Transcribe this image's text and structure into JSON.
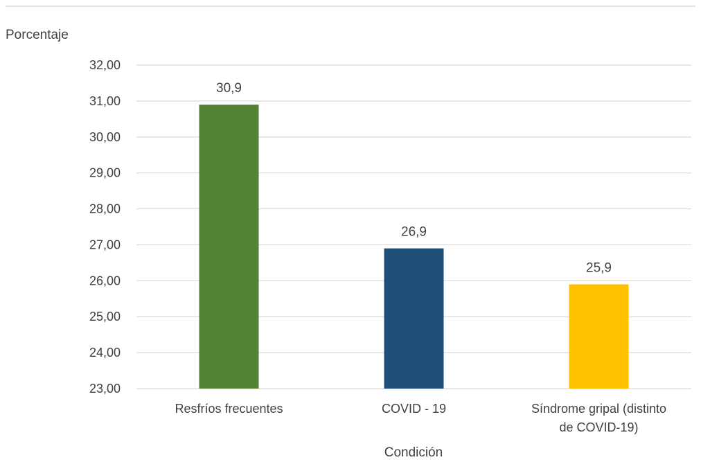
{
  "chart_data": {
    "type": "bar",
    "title": "",
    "ylabel": "Porcentaje",
    "xlabel": "Condición",
    "categories": [
      [
        "Resfríos frecuentes"
      ],
      [
        "COVID - 19"
      ],
      [
        "Síndrome gripal (distinto",
        "de COVID-19)"
      ]
    ],
    "values": [
      30.9,
      26.9,
      25.9
    ],
    "data_labels": [
      "30,9",
      "26,9",
      "25,9"
    ],
    "colors": [
      "#548235",
      "#1f4e79",
      "#ffc000"
    ],
    "ylim": [
      23,
      32
    ],
    "yticks": [
      "23,00",
      "24,00",
      "25,00",
      "26,00",
      "27,00",
      "28,00",
      "29,00",
      "30,00",
      "31,00",
      "32,00"
    ],
    "grid": true,
    "legend": "none"
  }
}
